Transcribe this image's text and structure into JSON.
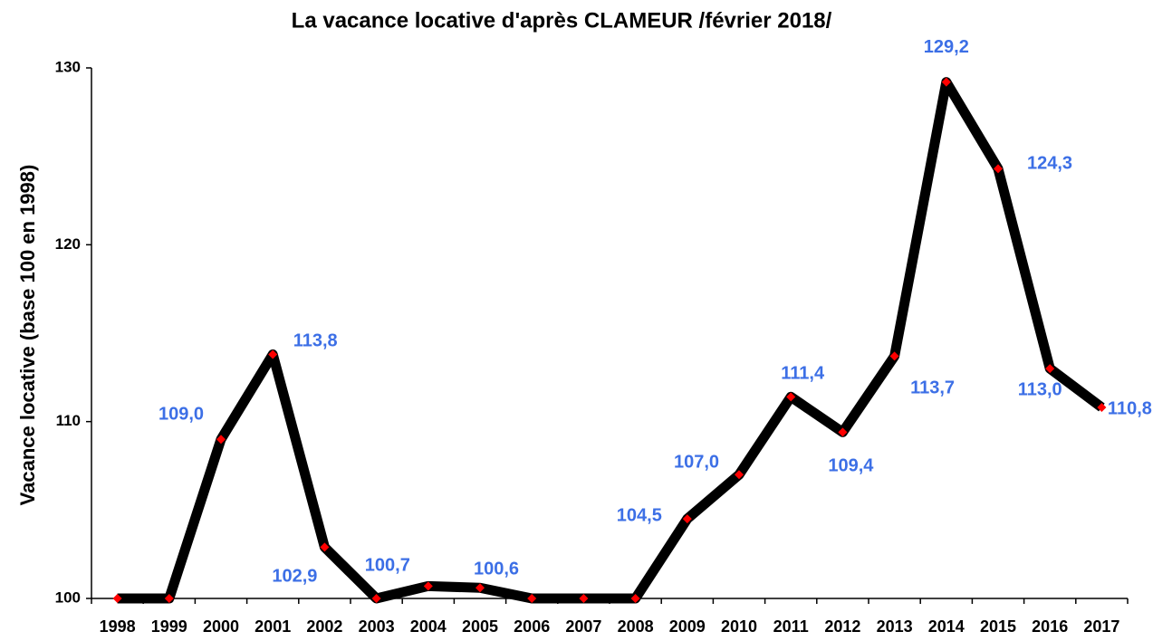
{
  "chart_data": {
    "type": "line",
    "title": "La vacance locative d'après CLAMEUR /février 2018/",
    "y_label": "Vacance locative (base 100 en 1998)",
    "categories": [
      "1998",
      "1999",
      "2000",
      "2001",
      "2002",
      "2003",
      "2004",
      "2005",
      "2006",
      "2007",
      "2008",
      "2009",
      "2010",
      "2011",
      "2012",
      "2013",
      "2014",
      "2015",
      "2016",
      "2017"
    ],
    "series": [
      {
        "name": "Vacance locative",
        "color": "#000000",
        "marker_color": "#ff0000",
        "label_color": "#3c6fe6",
        "values": [
          100,
          100,
          109.0,
          113.8,
          102.9,
          100,
          100.7,
          100.6,
          100,
          100,
          100,
          104.5,
          107.0,
          111.4,
          109.4,
          113.7,
          129.2,
          124.3,
          113.0,
          110.8
        ],
        "value_labels": [
          null,
          null,
          "109,0",
          "113,8",
          "102,9",
          null,
          "100,7",
          "100,6",
          null,
          null,
          null,
          "104,5",
          "107,0",
          "111,4",
          "109,4",
          "113,7",
          "129,2",
          "124,3",
          "113,0",
          "110,8"
        ]
      }
    ],
    "ylim": [
      100,
      130
    ],
    "yticks": [
      100,
      110,
      120,
      130
    ],
    "grid": false
  }
}
